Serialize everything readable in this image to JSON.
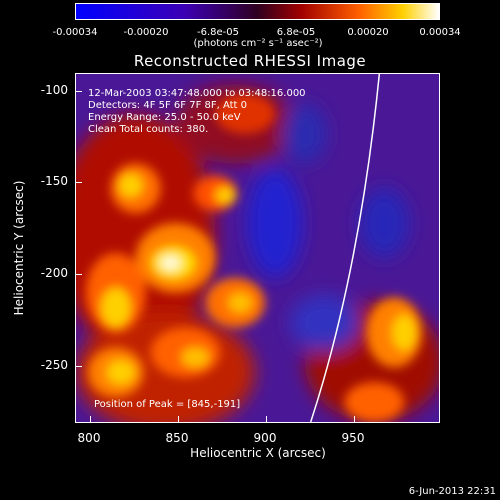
{
  "colorbar": {
    "ticks": [
      "-0.00034",
      "-0.00020",
      "-6.8e-05",
      "6.8e-05",
      "0.00020",
      "0.00034"
    ],
    "units": "(photons cm⁻² s⁻¹ asec⁻²)"
  },
  "plot": {
    "title": "Reconstructed RHESSI Image",
    "annotations": {
      "time": "12-Mar-2003 03:47:48.000 to 03:48:16.000",
      "detectors": "Detectors: 4F 5F 6F 7F 8F, Att 0",
      "energy": "Energy Range: 25.0 - 50.0 keV",
      "clean": "Clean    Total counts: 380.",
      "peak": "Position of Peak = [845,-191]"
    },
    "xlabel": "Heliocentric X (arcsec)",
    "ylabel": "Heliocentric Y (arcsec)",
    "xticks": [
      "800",
      "850",
      "900",
      "950"
    ],
    "yticks": [
      "-100",
      "-150",
      "-200",
      "-250"
    ]
  },
  "footer": {
    "date": "6-Jun-2013 22:31"
  }
}
